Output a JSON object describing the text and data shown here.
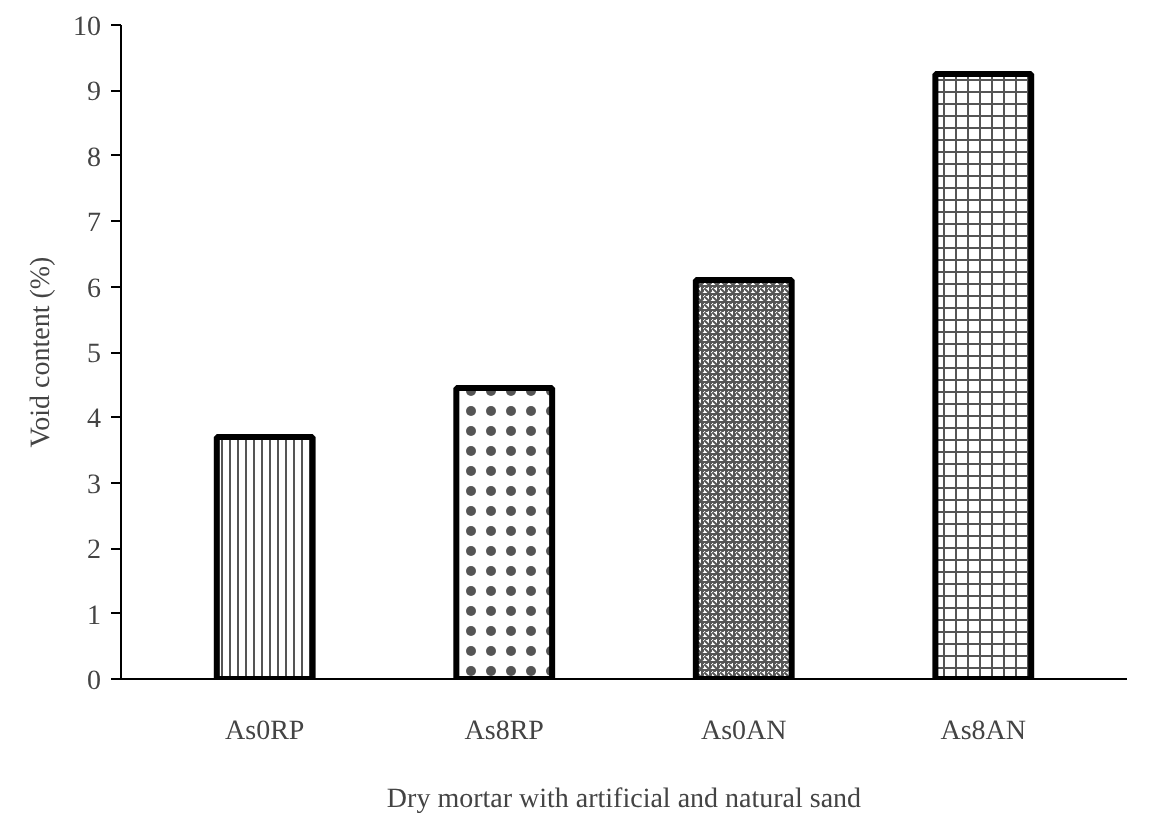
{
  "chart_data": {
    "type": "bar",
    "xlabel": "Dry mortar with artificial and natural sand",
    "ylabel": "Void content (%)",
    "categories": [
      "As0RP",
      "As8RP",
      "As0AN",
      "As8AN"
    ],
    "values": [
      3.7,
      4.45,
      6.1,
      9.25
    ],
    "ylim": [
      0,
      10
    ],
    "yticks": [
      0,
      1,
      2,
      3,
      4,
      5,
      6,
      7,
      8,
      9,
      10
    ],
    "grid": false
  }
}
